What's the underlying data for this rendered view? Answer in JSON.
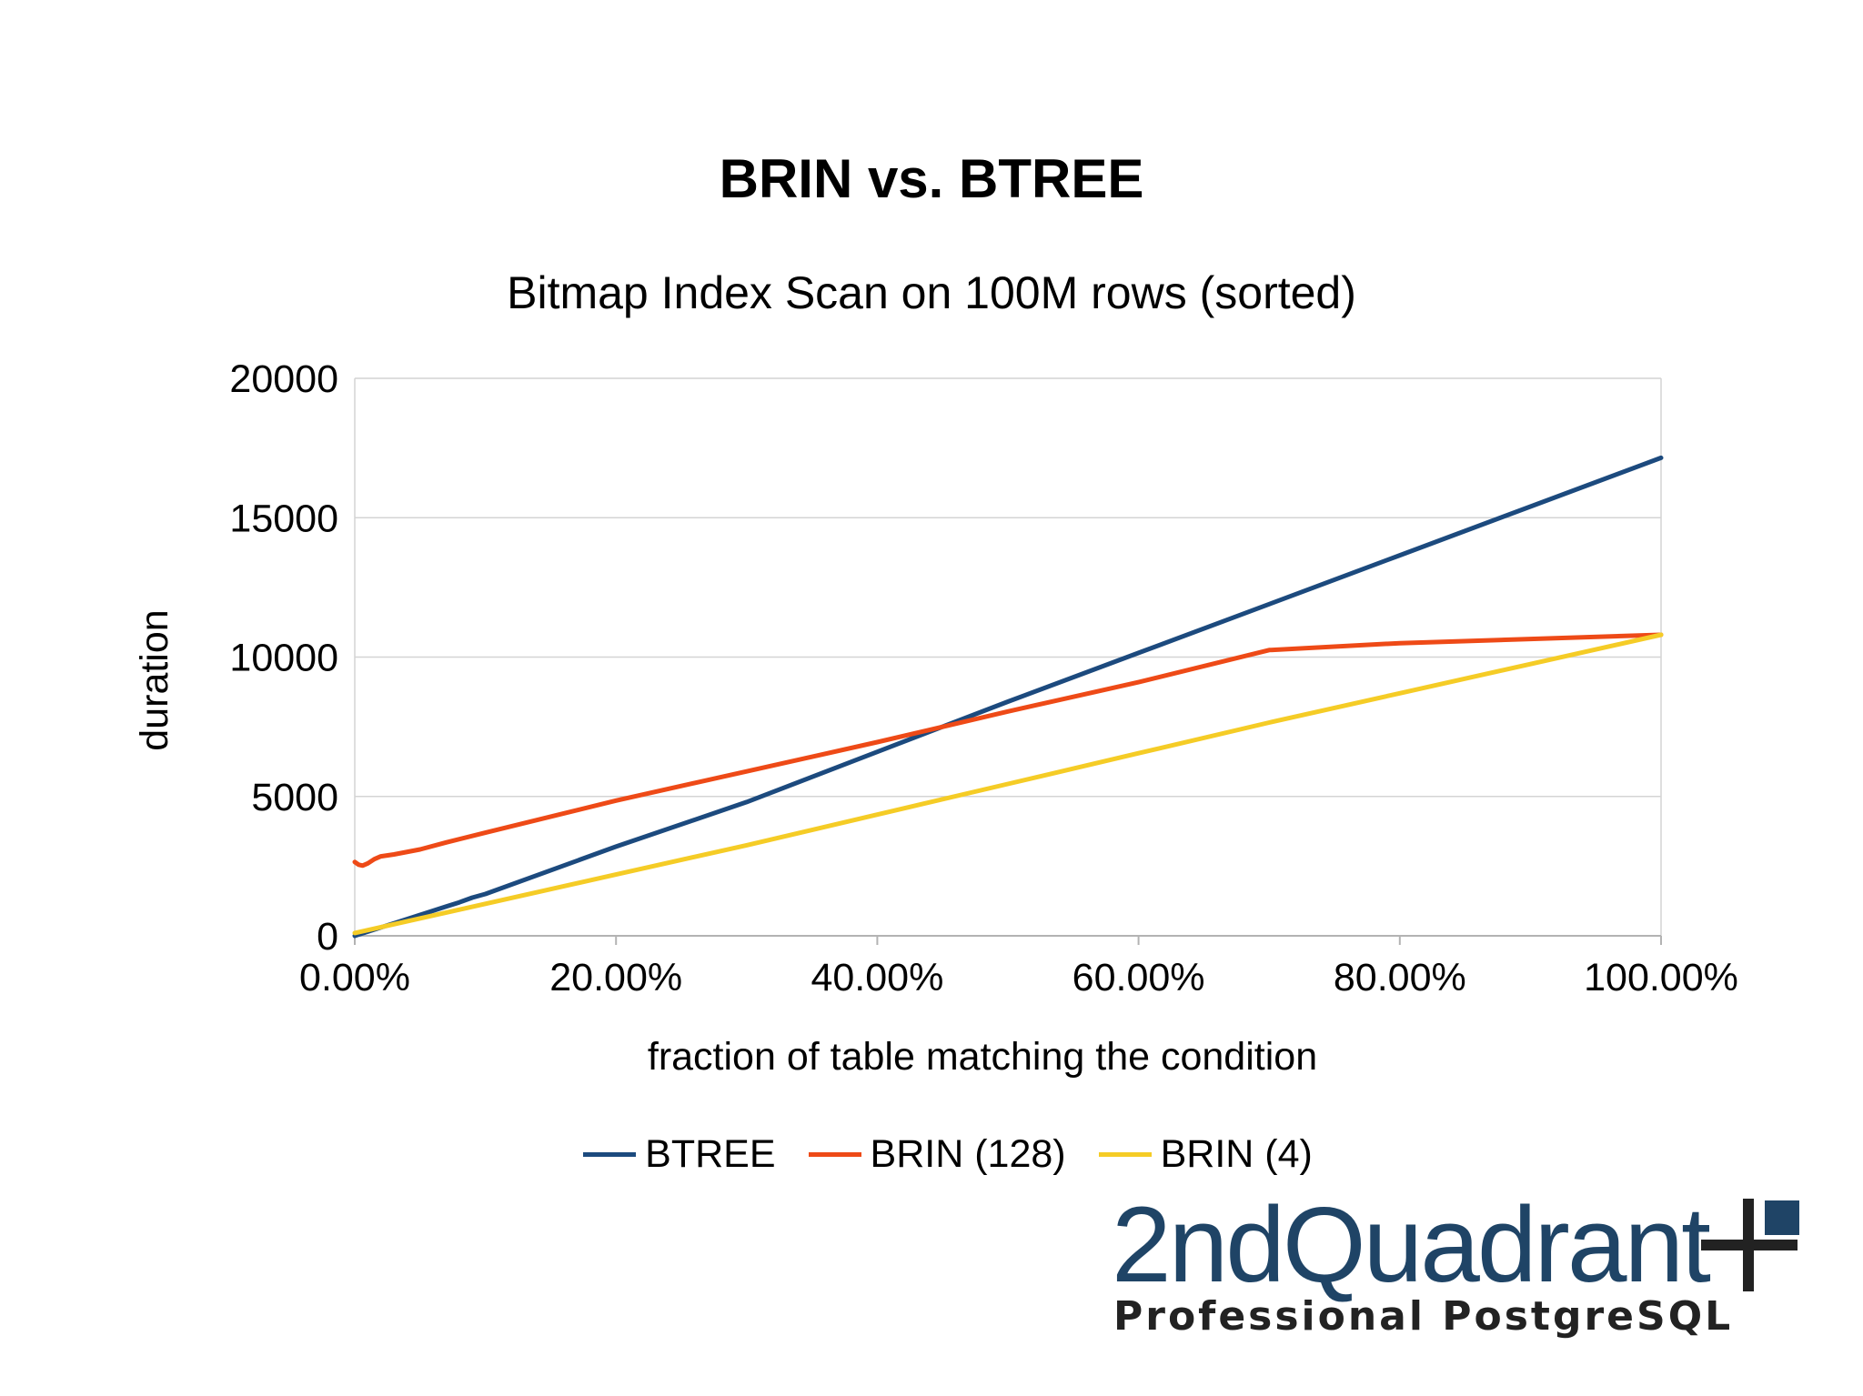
{
  "title": "BRIN vs. BTREE",
  "subtitle": "Bitmap Index Scan on 100M rows (sorted)",
  "logo": {
    "name": "2ndQuadrant",
    "tagline": "Professional PostgreSQL"
  },
  "chart_data": {
    "type": "line",
    "title": "BRIN vs. BTREE",
    "subtitle": "Bitmap Index Scan on 100M rows (sorted)",
    "xlabel": "fraction of table matching the condition",
    "ylabel": "duration",
    "xlim": [
      0,
      1
    ],
    "ylim": [
      0,
      20000
    ],
    "x_ticks": [
      0,
      0.2,
      0.4,
      0.6,
      0.8,
      1.0
    ],
    "x_tick_labels": [
      "0.00%",
      "20.00%",
      "40.00%",
      "60.00%",
      "80.00%",
      "100.00%"
    ],
    "y_ticks": [
      0,
      5000,
      10000,
      15000,
      20000
    ],
    "y_tick_labels": [
      "0",
      "5000",
      "10000",
      "15000",
      "20000"
    ],
    "grid": true,
    "legend": "bottom",
    "series": [
      {
        "name": "BTREE",
        "color": "#1c4a7e",
        "x": [
          0,
          0.01,
          0.02,
          0.03,
          0.04,
          0.05,
          0.06,
          0.07,
          0.08,
          0.09,
          0.1,
          0.2,
          0.3,
          0.4,
          0.5,
          0.6,
          0.7,
          0.8,
          0.9,
          1.0
        ],
        "y": [
          0,
          150,
          300,
          450,
          600,
          750,
          900,
          1050,
          1200,
          1370,
          1500,
          3200,
          4800,
          6600,
          8400,
          10150,
          11900,
          13650,
          15400,
          17150
        ]
      },
      {
        "name": "BRIN (128)",
        "color": "#ee4a17",
        "x": [
          0,
          0.003,
          0.006,
          0.01,
          0.015,
          0.02,
          0.03,
          0.05,
          0.07,
          0.1,
          0.2,
          0.3,
          0.4,
          0.5,
          0.6,
          0.7,
          0.8,
          0.9,
          1.0
        ],
        "y": [
          2650,
          2550,
          2520,
          2600,
          2750,
          2850,
          2920,
          3100,
          3350,
          3700,
          4850,
          5900,
          6950,
          8050,
          9100,
          10250,
          10500,
          10650,
          10800
        ]
      },
      {
        "name": "BRIN (4)",
        "color": "#f5cc26",
        "x": [
          0,
          0.1,
          0.2,
          0.3,
          0.4,
          0.5,
          0.6,
          0.7,
          0.8,
          0.9,
          1.0
        ],
        "y": [
          100,
          1150,
          2200,
          3250,
          4350,
          5450,
          6550,
          7650,
          8700,
          9750,
          10800
        ]
      }
    ]
  }
}
